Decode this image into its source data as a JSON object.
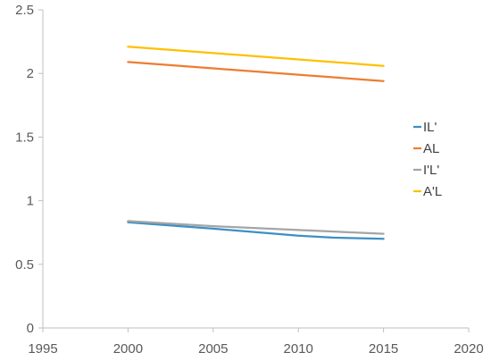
{
  "chart_data": {
    "type": "line",
    "title": "",
    "xlabel": "",
    "ylabel": "",
    "xlim": [
      1995,
      2020
    ],
    "ylim": [
      0,
      2.5
    ],
    "x_ticks": [
      1995,
      2000,
      2005,
      2010,
      2015,
      2020
    ],
    "y_ticks": [
      0,
      0.5,
      1,
      1.5,
      2,
      2.5
    ],
    "y_tick_labels": [
      "0",
      "0.5",
      "1",
      "1.5",
      "2",
      "2.5"
    ],
    "grid": false,
    "legend_position": "right",
    "series": [
      {
        "name": "IL'",
        "color": "#3d8fc4",
        "x": [
          2000,
          2005,
          2010,
          2012,
          2015
        ],
        "y": [
          0.83,
          0.78,
          0.725,
          0.71,
          0.7
        ]
      },
      {
        "name": "AL",
        "color": "#ed7d31",
        "x": [
          2000,
          2005,
          2010,
          2015
        ],
        "y": [
          2.09,
          2.04,
          1.99,
          1.94
        ]
      },
      {
        "name": "I'L'",
        "color": "#a5a5a5",
        "x": [
          2000,
          2005,
          2010,
          2015
        ],
        "y": [
          0.84,
          0.8,
          0.77,
          0.74
        ]
      },
      {
        "name": "A'L",
        "color": "#ffc000",
        "x": [
          2000,
          2005,
          2010,
          2015
        ],
        "y": [
          2.21,
          2.16,
          2.11,
          2.06
        ]
      }
    ]
  }
}
